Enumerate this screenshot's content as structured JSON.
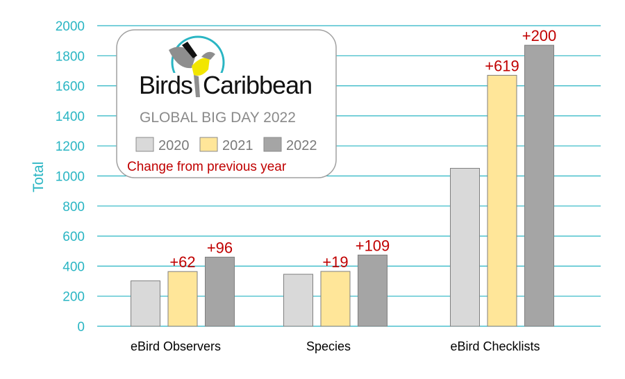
{
  "chart_data": {
    "type": "bar",
    "ylabel": "Total",
    "xlabel": "",
    "ylim": [
      0,
      2000
    ],
    "yticks": [
      0,
      200,
      400,
      600,
      800,
      1000,
      1200,
      1400,
      1600,
      1800,
      2000
    ],
    "grid": true,
    "categories": [
      "eBird Observers",
      "Species",
      "eBird Checklists"
    ],
    "series": [
      {
        "name": "2020",
        "color": "#d9d9d9",
        "values": [
          302,
          346,
          1051
        ]
      },
      {
        "name": "2021",
        "color": "#ffe699",
        "values": [
          364,
          365,
          1670
        ]
      },
      {
        "name": "2022",
        "color": "#a5a5a5",
        "values": [
          460,
          474,
          1870
        ]
      }
    ],
    "annotations": [
      {
        "category": "eBird Observers",
        "series": "2021",
        "text": "+62"
      },
      {
        "category": "eBird Observers",
        "series": "2022",
        "text": "+96"
      },
      {
        "category": "Species",
        "series": "2021",
        "text": "+19"
      },
      {
        "category": "Species",
        "series": "2022",
        "text": "+109"
      },
      {
        "category": "eBird Checklists",
        "series": "2021",
        "text": "+619"
      },
      {
        "category": "eBird Checklists",
        "series": "2022",
        "text": "+200"
      }
    ],
    "legend": {
      "placement": "top-left",
      "logo_text": "BirdsCaribbean",
      "subtitle": "GLOBAL BIG DAY 2022",
      "note": "Change from previous year"
    },
    "colors": {
      "axis": "#29b5c3",
      "annotation": "#c00000"
    }
  }
}
